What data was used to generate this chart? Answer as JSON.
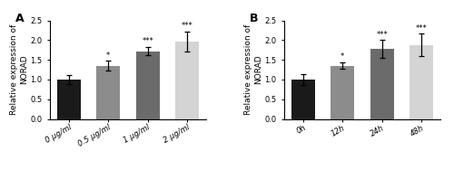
{
  "panel_A": {
    "label": "A",
    "categories": [
      "0 μg/ml",
      "0.5 μg/ml",
      "1 μg/ml",
      "2 μg/ml"
    ],
    "values": [
      1.0,
      1.35,
      1.72,
      1.97
    ],
    "errors": [
      0.12,
      0.12,
      0.1,
      0.25
    ],
    "bar_colors": [
      "#1a1a1a",
      "#8c8c8c",
      "#6b6b6b",
      "#d4d4d4"
    ],
    "significance": [
      "",
      "*",
      "***",
      "***"
    ],
    "ylabel": "Relative expression of\nNORAD",
    "ylim": [
      0,
      2.5
    ],
    "yticks": [
      0.0,
      0.5,
      1.0,
      1.5,
      2.0,
      2.5
    ]
  },
  "panel_B": {
    "label": "B",
    "categories": [
      "0h",
      "12h",
      "24h",
      "48h"
    ],
    "values": [
      1.0,
      1.35,
      1.78,
      1.88
    ],
    "errors": [
      0.13,
      0.08,
      0.22,
      0.28
    ],
    "bar_colors": [
      "#1a1a1a",
      "#8c8c8c",
      "#6b6b6b",
      "#d4d4d4"
    ],
    "significance": [
      "",
      "*",
      "***",
      "***"
    ],
    "ylabel": "Relative expression of\nNORAD",
    "ylim": [
      0,
      2.5
    ],
    "yticks": [
      0.0,
      0.5,
      1.0,
      1.5,
      2.0,
      2.5
    ]
  },
  "bar_width": 0.6,
  "sig_fontsize": 6.0,
  "label_fontsize": 9,
  "tick_fontsize": 6.0,
  "ylabel_fontsize": 6.5,
  "fig_width": 5.0,
  "fig_height": 1.88,
  "dpi": 100
}
